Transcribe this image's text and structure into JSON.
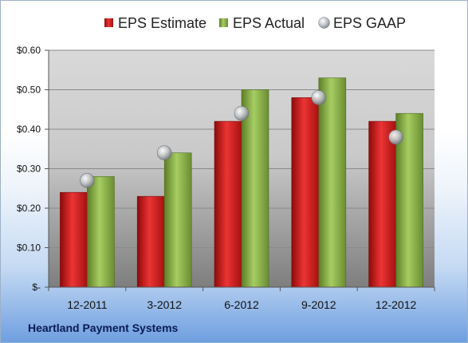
{
  "chart_data": {
    "type": "bar",
    "categories": [
      "12-2011",
      "3-2012",
      "6-2012",
      "9-2012",
      "12-2012"
    ],
    "series": [
      {
        "name": "EPS Estimate",
        "values": [
          0.24,
          0.23,
          0.42,
          0.48,
          0.42
        ],
        "color": "#d42020"
      },
      {
        "name": "EPS Actual",
        "values": [
          0.28,
          0.34,
          0.5,
          0.53,
          0.44
        ],
        "color": "#8ab44a"
      },
      {
        "name": "EPS GAAP",
        "values": [
          0.27,
          0.34,
          0.44,
          0.48,
          0.38
        ],
        "color": "#b8bcc2",
        "marker": "sphere"
      }
    ],
    "y_ticks": [
      "$-",
      "$0.10",
      "$0.20",
      "$0.30",
      "$0.40",
      "$0.50",
      "$0.60"
    ],
    "ylim": [
      0,
      0.6
    ],
    "grid": true,
    "legend_position": "top"
  },
  "company_name": "Heartland Payment Systems"
}
